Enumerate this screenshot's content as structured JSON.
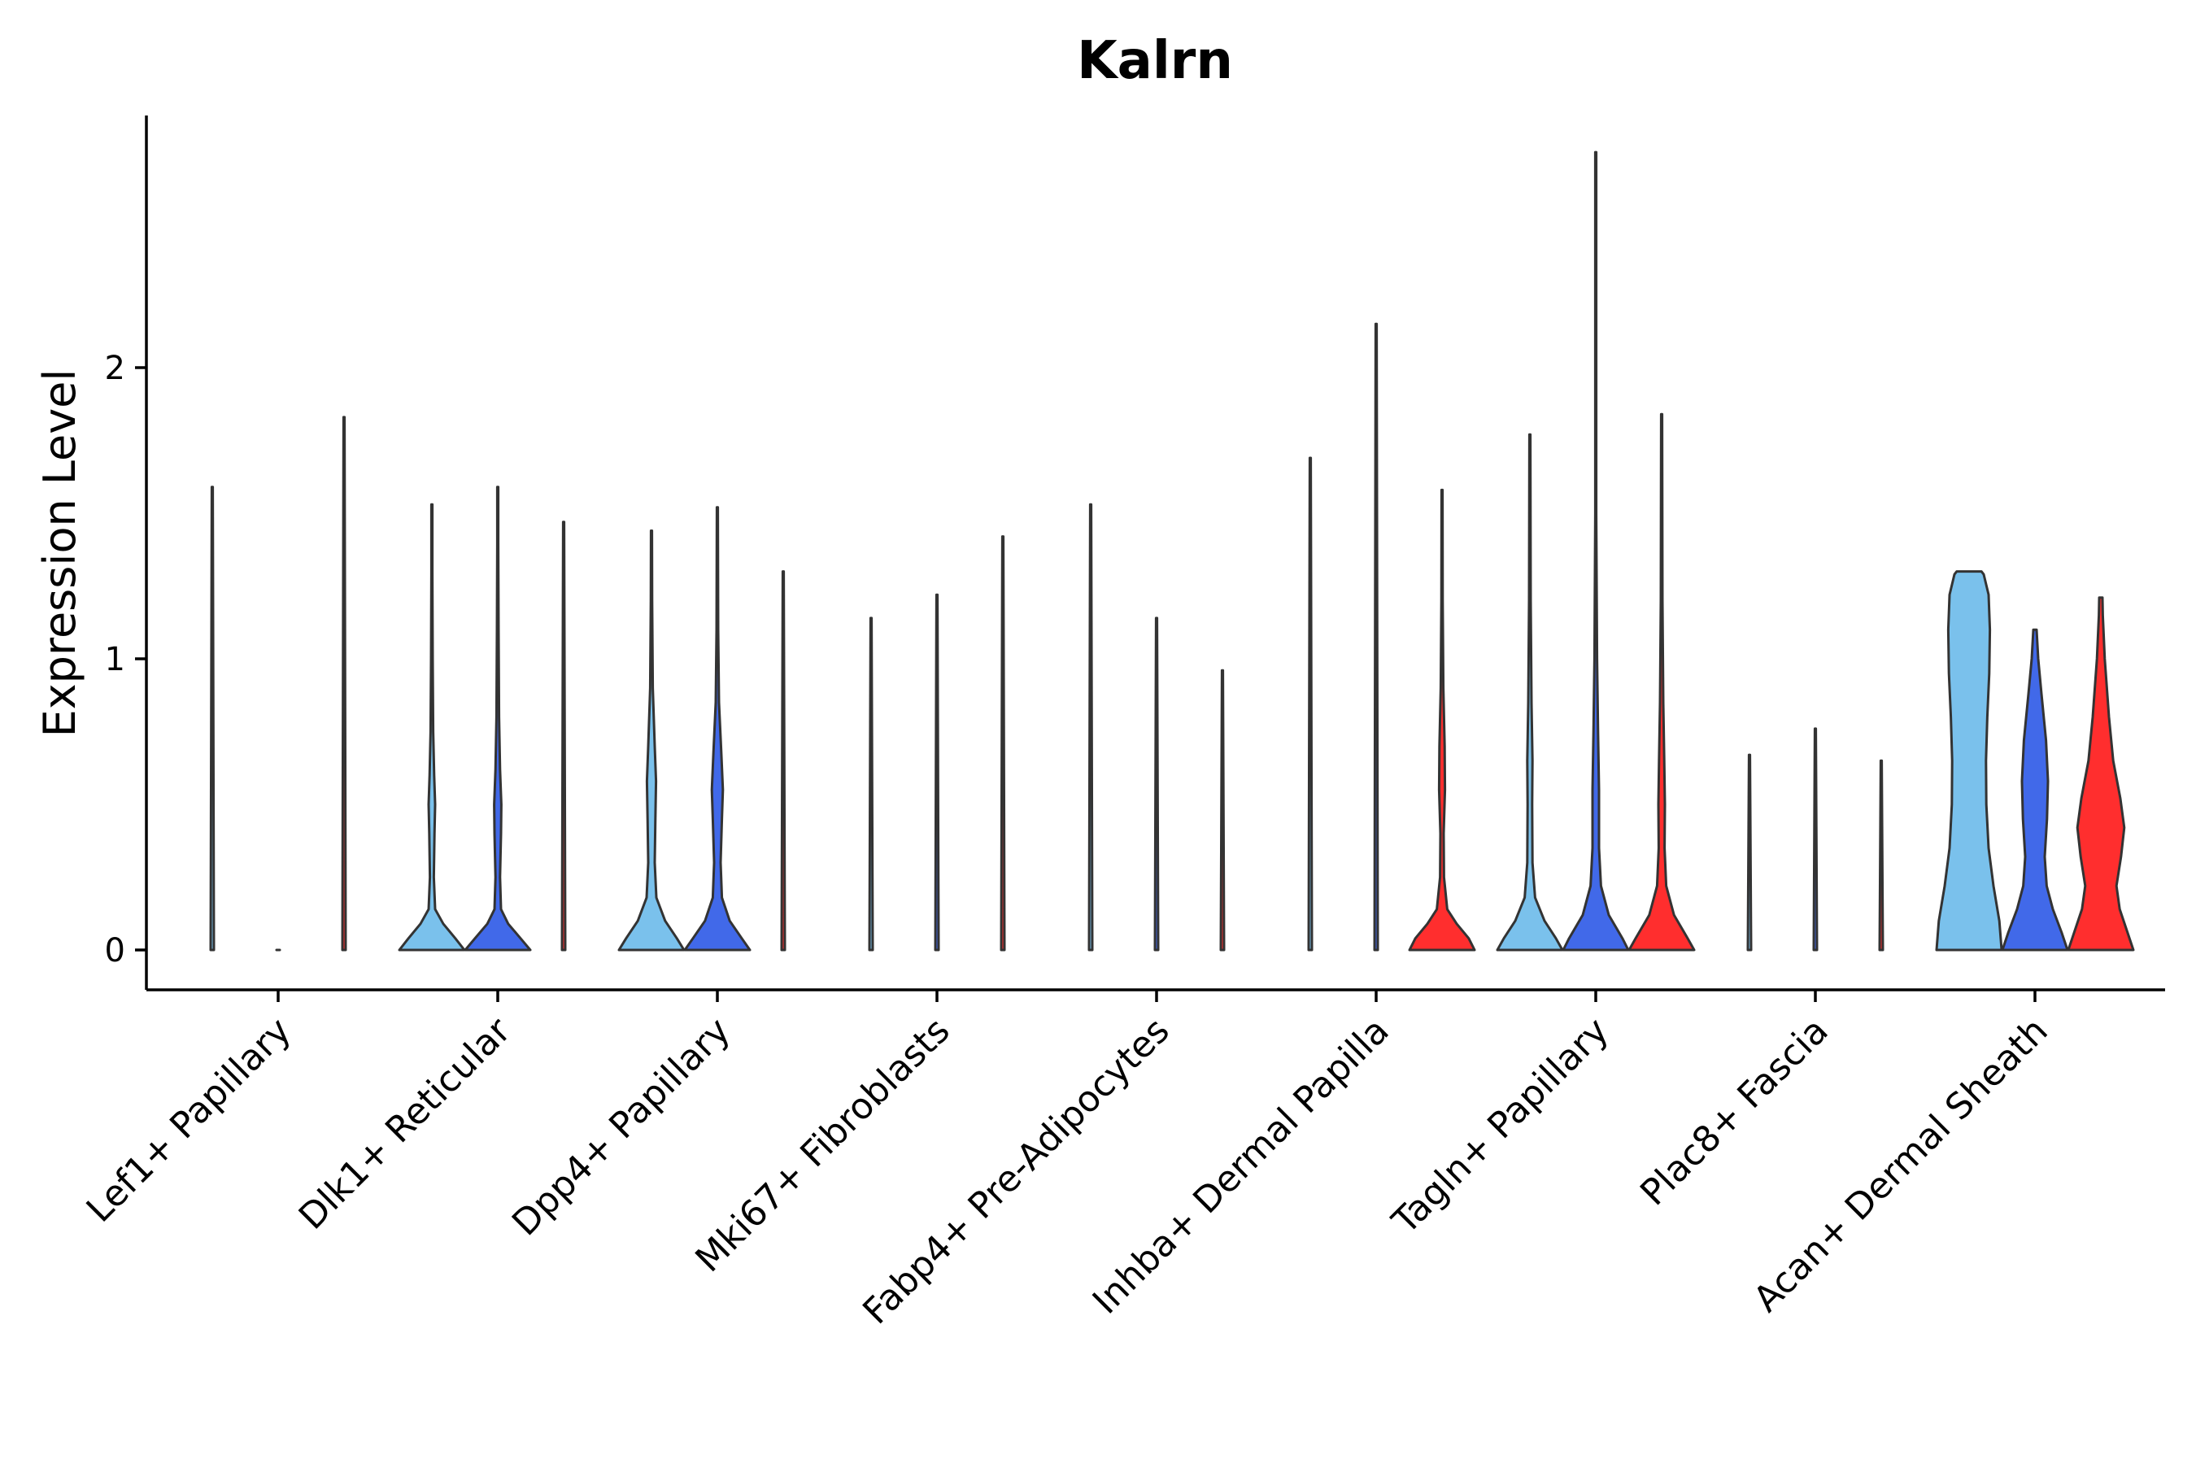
{
  "chart_data": {
    "type": "violin",
    "title": "Kalrn",
    "xlabel": "",
    "ylabel": "Expression Level",
    "ylim": [
      -0.14,
      2.87
    ],
    "yticks": [
      0,
      1,
      2
    ],
    "grid": false,
    "legend": "none",
    "categories": [
      "Lef1+ Papillary",
      "Dlk1+ Reticular",
      "Dpp4+ Papillary",
      "Mki67+ Fibroblasts",
      "Fabp4+ Pre-Adipocytes",
      "Inhba+ Dermal Papilla",
      "Tagln+ Papillary",
      "Plac8+ Fascia",
      "Acan+ Dermal Sheath"
    ],
    "group_colors": [
      "#7AC1EC",
      "#4169E9",
      "#FF2E2E"
    ],
    "violins": [
      {
        "cat": 0,
        "group": 0,
        "max": 1.59,
        "profile": [
          [
            0,
            0.05
          ],
          [
            1.59,
            0.002
          ]
        ]
      },
      {
        "cat": 0,
        "group": 1,
        "max": 0.0,
        "profile": [
          [
            0,
            0.05
          ]
        ]
      },
      {
        "cat": 0,
        "group": 2,
        "max": 1.83,
        "profile": [
          [
            0,
            0.05
          ],
          [
            1.83,
            0.002
          ]
        ]
      },
      {
        "cat": 1,
        "group": 0,
        "max": 1.53,
        "profile": [
          [
            0,
            1
          ],
          [
            0.04,
            0.72
          ],
          [
            0.09,
            0.35
          ],
          [
            0.14,
            0.1
          ],
          [
            0.25,
            0.06
          ],
          [
            0.4,
            0.08
          ],
          [
            0.5,
            0.1
          ],
          [
            0.6,
            0.07
          ],
          [
            0.75,
            0.04
          ],
          [
            1.0,
            0.025
          ],
          [
            1.3,
            0.015
          ],
          [
            1.53,
            0.008
          ]
        ]
      },
      {
        "cat": 1,
        "group": 1,
        "max": 1.59,
        "profile": [
          [
            0,
            1
          ],
          [
            0.04,
            0.7
          ],
          [
            0.09,
            0.32
          ],
          [
            0.14,
            0.1
          ],
          [
            0.25,
            0.07
          ],
          [
            0.4,
            0.1
          ],
          [
            0.5,
            0.11
          ],
          [
            0.62,
            0.07
          ],
          [
            0.8,
            0.04
          ],
          [
            1.1,
            0.025
          ],
          [
            1.4,
            0.015
          ],
          [
            1.59,
            0.008
          ]
        ]
      },
      {
        "cat": 1,
        "group": 2,
        "max": 1.47,
        "profile": [
          [
            0,
            0.05
          ],
          [
            1.47,
            0.002
          ]
        ]
      },
      {
        "cat": 2,
        "group": 0,
        "max": 1.44,
        "profile": [
          [
            0,
            1
          ],
          [
            0.04,
            0.78
          ],
          [
            0.1,
            0.42
          ],
          [
            0.18,
            0.15
          ],
          [
            0.3,
            0.1
          ],
          [
            0.45,
            0.12
          ],
          [
            0.58,
            0.14
          ],
          [
            0.7,
            0.1
          ],
          [
            0.9,
            0.04
          ],
          [
            1.2,
            0.02
          ],
          [
            1.44,
            0.008
          ]
        ]
      },
      {
        "cat": 2,
        "group": 1,
        "max": 1.52,
        "profile": [
          [
            0,
            1
          ],
          [
            0.04,
            0.75
          ],
          [
            0.1,
            0.38
          ],
          [
            0.18,
            0.14
          ],
          [
            0.3,
            0.1
          ],
          [
            0.45,
            0.14
          ],
          [
            0.55,
            0.17
          ],
          [
            0.68,
            0.12
          ],
          [
            0.85,
            0.05
          ],
          [
            1.1,
            0.025
          ],
          [
            1.52,
            0.008
          ]
        ]
      },
      {
        "cat": 2,
        "group": 2,
        "max": 1.3,
        "profile": [
          [
            0,
            0.05
          ],
          [
            1.3,
            0.002
          ]
        ]
      },
      {
        "cat": 3,
        "group": 0,
        "max": 1.14,
        "profile": [
          [
            0,
            0.05
          ],
          [
            1.14,
            0.002
          ]
        ]
      },
      {
        "cat": 3,
        "group": 1,
        "max": 1.22,
        "profile": [
          [
            0,
            0.05
          ],
          [
            1.22,
            0.002
          ]
        ]
      },
      {
        "cat": 3,
        "group": 2,
        "max": 1.42,
        "profile": [
          [
            0,
            0.05
          ],
          [
            1.42,
            0.002
          ]
        ]
      },
      {
        "cat": 4,
        "group": 0,
        "max": 1.53,
        "profile": [
          [
            0,
            0.05
          ],
          [
            1.53,
            0.002
          ]
        ]
      },
      {
        "cat": 4,
        "group": 1,
        "max": 1.14,
        "profile": [
          [
            0,
            0.05
          ],
          [
            1.14,
            0.002
          ]
        ]
      },
      {
        "cat": 4,
        "group": 2,
        "max": 0.96,
        "profile": [
          [
            0,
            0.05
          ],
          [
            0.96,
            0.002
          ]
        ]
      },
      {
        "cat": 5,
        "group": 0,
        "max": 1.69,
        "profile": [
          [
            0,
            0.05
          ],
          [
            1.69,
            0.002
          ]
        ]
      },
      {
        "cat": 5,
        "group": 1,
        "max": 2.15,
        "profile": [
          [
            0,
            0.05
          ],
          [
            2.15,
            0.002
          ]
        ]
      },
      {
        "cat": 5,
        "group": 2,
        "max": 1.58,
        "profile": [
          [
            0,
            1
          ],
          [
            0.04,
            0.82
          ],
          [
            0.09,
            0.45
          ],
          [
            0.14,
            0.16
          ],
          [
            0.25,
            0.06
          ],
          [
            0.4,
            0.05
          ],
          [
            0.55,
            0.09
          ],
          [
            0.7,
            0.08
          ],
          [
            0.9,
            0.04
          ],
          [
            1.2,
            0.02
          ],
          [
            1.58,
            0.006
          ]
        ]
      },
      {
        "cat": 6,
        "group": 0,
        "max": 1.77,
        "profile": [
          [
            0,
            1
          ],
          [
            0.04,
            0.8
          ],
          [
            0.1,
            0.45
          ],
          [
            0.18,
            0.16
          ],
          [
            0.3,
            0.08
          ],
          [
            0.5,
            0.07
          ],
          [
            0.65,
            0.08
          ],
          [
            0.85,
            0.05
          ],
          [
            1.2,
            0.025
          ],
          [
            1.77,
            0.008
          ]
        ]
      },
      {
        "cat": 6,
        "group": 1,
        "max": 2.74,
        "profile": [
          [
            0,
            1
          ],
          [
            0.04,
            0.82
          ],
          [
            0.12,
            0.4
          ],
          [
            0.22,
            0.16
          ],
          [
            0.35,
            0.1
          ],
          [
            0.55,
            0.1
          ],
          [
            0.75,
            0.07
          ],
          [
            1.0,
            0.04
          ],
          [
            1.5,
            0.015
          ],
          [
            2.0,
            0.008
          ],
          [
            2.74,
            0.004
          ]
        ]
      },
      {
        "cat": 6,
        "group": 2,
        "max": 1.84,
        "profile": [
          [
            0,
            1
          ],
          [
            0.04,
            0.8
          ],
          [
            0.12,
            0.38
          ],
          [
            0.22,
            0.14
          ],
          [
            0.35,
            0.09
          ],
          [
            0.5,
            0.1
          ],
          [
            0.65,
            0.08
          ],
          [
            0.85,
            0.05
          ],
          [
            1.2,
            0.025
          ],
          [
            1.84,
            0.006
          ]
        ]
      },
      {
        "cat": 7,
        "group": 0,
        "max": 0.67,
        "profile": [
          [
            0,
            0.05
          ],
          [
            0.67,
            0.002
          ]
        ]
      },
      {
        "cat": 7,
        "group": 1,
        "max": 0.76,
        "profile": [
          [
            0,
            0.05
          ],
          [
            0.76,
            0.002
          ]
        ]
      },
      {
        "cat": 7,
        "group": 2,
        "max": 0.65,
        "profile": [
          [
            0,
            0.05
          ],
          [
            0.65,
            0.002
          ]
        ]
      },
      {
        "cat": 8,
        "group": 0,
        "max": 1.3,
        "profile": [
          [
            0,
            1
          ],
          [
            0.1,
            0.93
          ],
          [
            0.22,
            0.75
          ],
          [
            0.35,
            0.6
          ],
          [
            0.5,
            0.53
          ],
          [
            0.65,
            0.52
          ],
          [
            0.8,
            0.56
          ],
          [
            0.95,
            0.62
          ],
          [
            1.1,
            0.64
          ],
          [
            1.22,
            0.6
          ],
          [
            1.29,
            0.45
          ],
          [
            1.3,
            0.38
          ]
        ]
      },
      {
        "cat": 8,
        "group": 1,
        "max": 1.1,
        "profile": [
          [
            0,
            1
          ],
          [
            0.06,
            0.82
          ],
          [
            0.14,
            0.55
          ],
          [
            0.22,
            0.36
          ],
          [
            0.32,
            0.3
          ],
          [
            0.45,
            0.37
          ],
          [
            0.58,
            0.4
          ],
          [
            0.72,
            0.34
          ],
          [
            0.88,
            0.2
          ],
          [
            1.0,
            0.1
          ],
          [
            1.1,
            0.05
          ]
        ]
      },
      {
        "cat": 8,
        "group": 2,
        "max": 1.21,
        "profile": [
          [
            0,
            1
          ],
          [
            0.06,
            0.82
          ],
          [
            0.14,
            0.58
          ],
          [
            0.22,
            0.48
          ],
          [
            0.32,
            0.62
          ],
          [
            0.42,
            0.72
          ],
          [
            0.52,
            0.6
          ],
          [
            0.65,
            0.38
          ],
          [
            0.8,
            0.25
          ],
          [
            1.0,
            0.12
          ],
          [
            1.15,
            0.06
          ],
          [
            1.21,
            0.05
          ]
        ]
      }
    ]
  }
}
